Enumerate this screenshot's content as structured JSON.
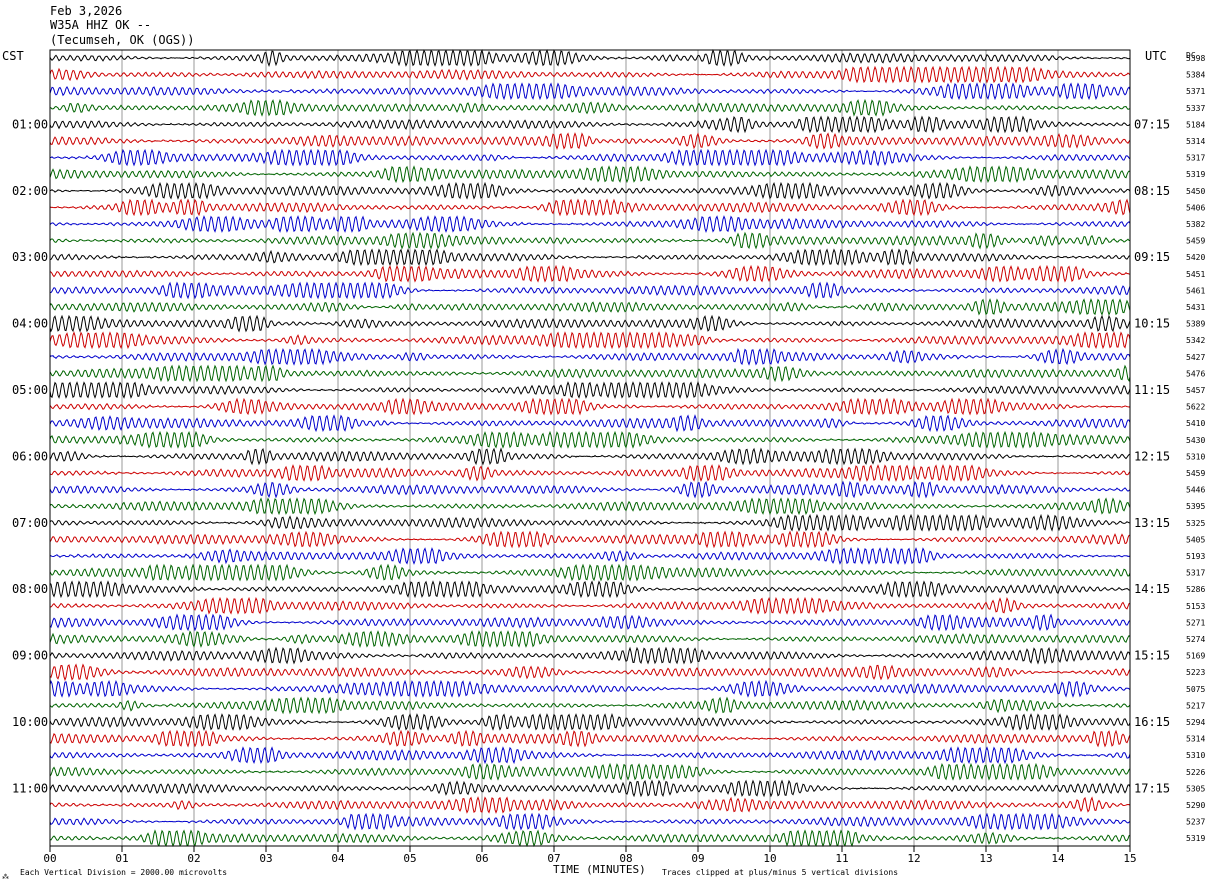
{
  "header": {
    "date": "Feb 3,2026",
    "station": "W35A HHZ OK --",
    "location": "(Tecumseh, OK (OGS))"
  },
  "left_axis_label": "CST",
  "right_axis_label": "UTC",
  "dc_label": "DC",
  "footer": {
    "scale_note": "Each Vertical Division = 2000.00 microvolts",
    "xlabel": "TIME (MINUTES)",
    "clip_note": "Traces clipped at plus/minus 5 vertical divisions"
  },
  "colors": {
    "trace_cycle": [
      "#000000",
      "#cc0000",
      "#0000cc",
      "#006400"
    ],
    "grid": "#808080",
    "frame": "#000000"
  },
  "chart_data": {
    "type": "line",
    "title": "",
    "xlabel": "TIME (MINUTES)",
    "x_ticks": [
      "00",
      "01",
      "02",
      "03",
      "04",
      "05",
      "06",
      "07",
      "08",
      "09",
      "10",
      "11",
      "12",
      "13",
      "14",
      "15"
    ],
    "xlim": [
      0,
      15
    ],
    "trace_count": 48,
    "trace_minutes": 15,
    "left_hour_labels": [
      {
        "row": 4,
        "text": "01:00"
      },
      {
        "row": 8,
        "text": "02:00"
      },
      {
        "row": 12,
        "text": "03:00"
      },
      {
        "row": 16,
        "text": "04:00"
      },
      {
        "row": 20,
        "text": "05:00"
      },
      {
        "row": 24,
        "text": "06:00"
      },
      {
        "row": 28,
        "text": "07:00"
      },
      {
        "row": 32,
        "text": "08:00"
      },
      {
        "row": 36,
        "text": "09:00"
      },
      {
        "row": 40,
        "text": "10:00"
      },
      {
        "row": 44,
        "text": "11:00"
      }
    ],
    "right_hour_labels": [
      {
        "row": 4,
        "text": "07:15"
      },
      {
        "row": 8,
        "text": "08:15"
      },
      {
        "row": 12,
        "text": "09:15"
      },
      {
        "row": 16,
        "text": "10:15"
      },
      {
        "row": 20,
        "text": "11:15"
      },
      {
        "row": 24,
        "text": "12:15"
      },
      {
        "row": 28,
        "text": "13:15"
      },
      {
        "row": 32,
        "text": "14:15"
      },
      {
        "row": 36,
        "text": "15:15"
      },
      {
        "row": 40,
        "text": "16:15"
      },
      {
        "row": 44,
        "text": "17:15"
      }
    ],
    "dc_offsets": [
      "5398",
      "5384",
      "5371",
      "5337",
      "5184",
      "5314",
      "5317",
      "5319",
      "5450",
      "5406",
      "5382",
      "5459",
      "5420",
      "5451",
      "5461",
      "5431",
      "5389",
      "5342",
      "5427",
      "5476",
      "5457",
      "5622",
      "5410",
      "5430",
      "5310",
      "5459",
      "5446",
      "5395",
      "5325",
      "5405",
      "5193",
      "5317",
      "5286",
      "5153",
      "5271",
      "5274",
      "5169",
      "5223",
      "5075",
      "5217",
      "5294",
      "5314",
      "5310",
      "5226",
      "5305",
      "5290",
      "5237",
      "5319"
    ]
  }
}
